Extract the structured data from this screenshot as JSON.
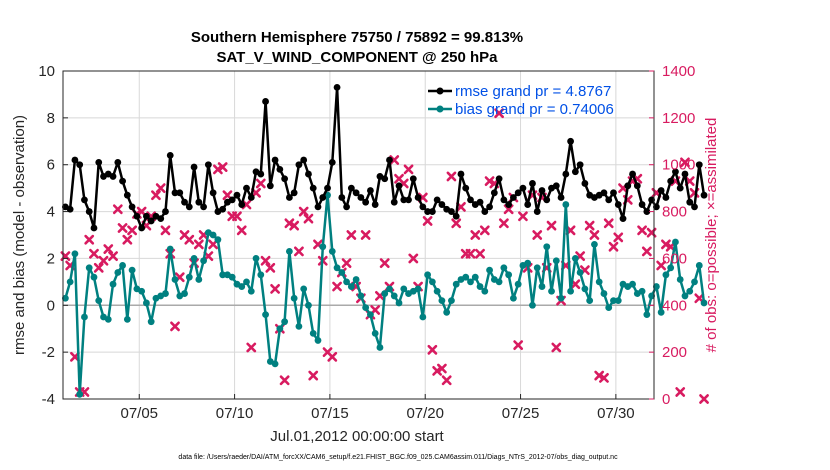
{
  "chart_data": {
    "type": "line",
    "title": "Southern Hemisphere 75750 / 75892 = 99.813%",
    "subtitle": "SAT_V_WIND_COMPONENT @ 250 hPa",
    "xlabel": "Jul.01,2012 00:00:00 start",
    "ylabel_left": "rmse and bias (model - observation)",
    "ylabel_right": "# of obs: o=possible; ×=assimilated",
    "xlim": [
      1,
      32
    ],
    "ylim_left": [
      -4,
      10
    ],
    "ylim_right": [
      0,
      1400
    ],
    "x_ticks": [
      5,
      10,
      15,
      20,
      25,
      30
    ],
    "x_tick_labels": [
      "07/05",
      "07/10",
      "07/15",
      "07/20",
      "07/25",
      "07/30"
    ],
    "y_ticks_left": [
      -4,
      -2,
      0,
      2,
      4,
      6,
      8,
      10
    ],
    "y_tick_labels_left": [
      "-4",
      "-2",
      "0",
      "2",
      "4",
      "6",
      "8",
      "10"
    ],
    "y_ticks_right": [
      0,
      200,
      400,
      600,
      800,
      1000,
      1200,
      1400
    ],
    "y_tick_labels_right": [
      "0",
      "200",
      "400",
      "600",
      "800",
      "1000",
      "1200",
      "1400"
    ],
    "zero_line": 0,
    "start_day": 1.125,
    "step_days": 0.25,
    "grid": true,
    "legend_position": "top-right",
    "colors": {
      "rmse": "#000000",
      "bias": "#008080",
      "obs": "#d81b60",
      "zero": "#aaaaaa",
      "axis": "#262626"
    },
    "series": [
      {
        "name": "rmse grand pr = 4.8767",
        "axis": "left",
        "values": [
          4.2,
          4.1,
          6.2,
          6.0,
          4.5,
          4.0,
          3.3,
          6.1,
          5.5,
          5.6,
          5.5,
          6.1,
          5.3,
          4.7,
          4.2,
          3.8,
          3.3,
          3.8,
          3.6,
          3.8,
          3.7,
          4.0,
          6.4,
          4.8,
          4.8,
          4.4,
          4.2,
          5.9,
          4.4,
          4.2,
          6.0,
          4.8,
          4.0,
          4.1,
          4.4,
          4.5,
          4.7,
          4.3,
          5.0,
          4.6,
          5.7,
          5.6,
          8.7,
          5.1,
          6.2,
          5.8,
          5.4,
          4.6,
          4.8,
          6.0,
          6.2,
          5.6,
          5.0,
          4.2,
          4.6,
          5.0,
          6.1,
          9.3,
          4.6,
          4.2,
          5.0,
          4.8,
          4.6,
          4.4,
          4.9,
          4.3,
          5.5,
          5.4,
          6.2,
          4.4,
          5.1,
          4.5,
          4.5,
          5.4,
          4.6,
          4.2,
          4.0,
          4.0,
          4.5,
          4.3,
          4.1,
          4.0,
          3.8,
          5.6,
          5.0,
          4.5,
          4.3,
          4.4,
          4.0,
          4.2,
          4.8,
          5.4,
          4.5,
          4.3,
          4.6,
          4.8,
          5.0,
          4.3,
          5.2,
          4.0,
          4.9,
          4.5,
          5.0,
          5.1,
          4.6,
          5.6,
          7.0,
          5.7,
          6.0,
          5.2,
          4.7,
          4.6,
          4.7,
          4.8,
          4.5,
          4.8,
          4.3,
          3.7,
          5.1,
          5.6,
          5.1,
          4.3,
          4.0,
          4.5,
          4.2,
          4.9,
          4.6,
          5.3,
          5.7,
          5.0,
          5.6,
          4.4,
          4.2,
          6.0,
          4.7
        ]
      },
      {
        "name": "bias grand pr = 0.74006",
        "axis": "left",
        "values": [
          0.3,
          1.0,
          2.2,
          -3.8,
          -0.5,
          1.6,
          1.2,
          0.2,
          -0.5,
          -0.6,
          0.9,
          1.4,
          1.7,
          -0.6,
          1.5,
          0.7,
          0.6,
          0.1,
          -0.7,
          0.3,
          0.4,
          0.5,
          2.4,
          1.1,
          0.4,
          0.5,
          1.2,
          2.0,
          1.1,
          1.9,
          3.1,
          3.0,
          2.8,
          1.3,
          1.3,
          1.2,
          0.9,
          0.8,
          1.0,
          0.6,
          2.0,
          1.3,
          -0.4,
          -2.4,
          -2.5,
          -1.0,
          -0.7,
          2.3,
          0.3,
          -0.9,
          0.7,
          0.0,
          -1.2,
          -1.5,
          2.5,
          4.7,
          2.3,
          1.6,
          1.4,
          1.0,
          0.8,
          1.1,
          0.4,
          -0.1,
          -0.4,
          -1.2,
          -1.8,
          0.5,
          0.7,
          0.4,
          0.1,
          0.7,
          0.5,
          0.6,
          0.7,
          -0.5,
          1.3,
          1.0,
          0.6,
          0.2,
          -0.3,
          0.2,
          0.9,
          1.1,
          1.2,
          1.0,
          1.2,
          0.8,
          0.6,
          1.5,
          1.1,
          1.0,
          1.6,
          1.3,
          0.3,
          0.9,
          1.7,
          1.8,
          0.0,
          1.6,
          0.8,
          2.5,
          0.6,
          1.9,
          0.3,
          4.3,
          0.6,
          2.0,
          1.4,
          0.7,
          0.2,
          2.6,
          1.0,
          0.5,
          -0.1,
          0.2,
          0.2,
          0.9,
          0.8,
          0.9,
          0.5,
          0.6,
          -0.4,
          0.4,
          0.8,
          -0.3,
          1.3,
          1.6,
          2.7,
          1.1,
          0.4,
          0.6,
          1.0,
          1.7,
          0.1
        ]
      },
      {
        "name": "obs possible / assimilated",
        "axis": "right",
        "values": [
          610,
          570,
          180,
          30,
          30,
          680,
          620,
          560,
          590,
          640,
          610,
          810,
          730,
          680,
          720,
          790,
          800,
          740,
          780,
          870,
          900,
          720,
          620,
          310,
          520,
          700,
          680,
          580,
          660,
          700,
          610,
          660,
          980,
          990,
          870,
          780,
          780,
          720,
          830,
          220,
          880,
          920,
          590,
          560,
          470,
          300,
          80,
          750,
          740,
          630,
          800,
          770,
          100,
          660,
          590,
          200,
          180,
          480,
          540,
          580,
          700,
          480,
          430,
          700,
          360,
          380,
          440,
          580,
          480,
          1020,
          940,
          920,
          980,
          600,
          480,
          860,
          760,
          210,
          120,
          130,
          80,
          950,
          750,
          820,
          620,
          620,
          700,
          620,
          720,
          930,
          920,
          1220,
          750,
          810,
          860,
          230,
          780,
          560,
          870,
          700,
          860,
          560,
          740,
          220,
          420,
          570,
          720,
          490,
          610,
          550,
          740,
          700,
          100,
          90,
          750,
          650,
          690,
          900,
          850,
          930,
          940,
          720,
          630,
          710,
          880,
          570,
          660,
          650,
          930,
          30,
          1010,
          930,
          880,
          430,
          0
        ]
      }
    ]
  },
  "footer": "data file: /Users/raeder/DAI/ATM_forcXX/CAM6_setup/f.e21.FHIST_BGC.f09_025.CAM6assim.011/Diags_NTrS_2012-07/obs_diag_output.nc"
}
